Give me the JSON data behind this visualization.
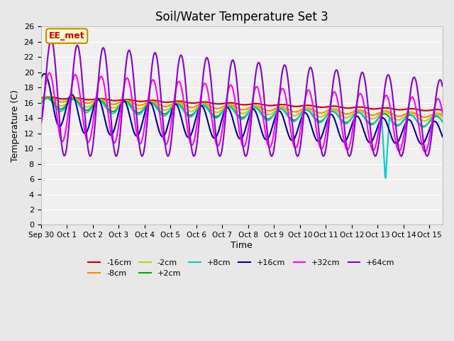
{
  "title": "Soil/Water Temperature Set 3",
  "xlabel": "Time",
  "ylabel": "Temperature (C)",
  "ylim": [
    0,
    26
  ],
  "yticks": [
    0,
    2,
    4,
    6,
    8,
    10,
    12,
    14,
    16,
    18,
    20,
    22,
    24,
    26
  ],
  "xtick_labels": [
    "Sep 30",
    "Oct 1",
    "Oct 2",
    "Oct 3",
    "Oct 4",
    "Oct 5",
    "Oct 6",
    "Oct 7",
    "Oct 8",
    "Oct 9",
    "Oct 10",
    "Oct 11",
    "Oct 12",
    "Oct 13",
    "Oct 14",
    "Oct 15"
  ],
  "series": {
    "-16cm": {
      "color": "#cc0000",
      "lw": 1.5
    },
    "-8cm": {
      "color": "#ff8800",
      "lw": 1.5
    },
    "-2cm": {
      "color": "#cccc00",
      "lw": 1.5
    },
    "+2cm": {
      "color": "#00aa00",
      "lw": 1.5
    },
    "+8cm": {
      "color": "#00cccc",
      "lw": 1.5
    },
    "+16cm": {
      "color": "#000099",
      "lw": 1.5
    },
    "+32cm": {
      "color": "#ff00ff",
      "lw": 1.5
    },
    "+64cm": {
      "color": "#8800cc",
      "lw": 1.5
    }
  },
  "background_color": "#e8e8e8",
  "plot_bg_color": "#f0f0f0"
}
